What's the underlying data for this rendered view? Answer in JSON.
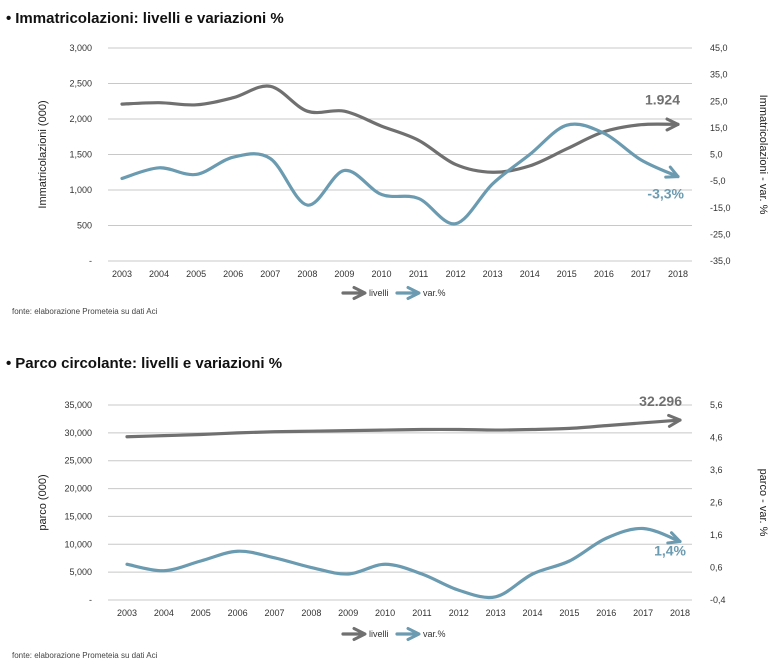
{
  "charts_meta": {
    "bullet": "•",
    "source_text": "fonte: elaborazione Prometeia su dati Aci",
    "legend_levels": "livelli",
    "legend_var": "var.%",
    "colors": {
      "levels": "#707070",
      "var": "#6b9bb0",
      "grid": "#c8c8c8"
    }
  },
  "chart_data": [
    {
      "type": "line",
      "title": "Immatricolazioni: livelli e variazioni %",
      "categories": [
        "2003",
        "2004",
        "2005",
        "2006",
        "2007",
        "2008",
        "2009",
        "2010",
        "2011",
        "2012",
        "2013",
        "2014",
        "2015",
        "2016",
        "2017",
        "2018"
      ],
      "ylabel": "Immatricolazioni (000)",
      "y2label": "Immatricolazioni - var. %",
      "yticks": [
        "3,000",
        "2,500",
        "2,000",
        "1,500",
        "1,000",
        "500",
        "-"
      ],
      "y2ticks": [
        "45,0",
        "35,0",
        "25,0",
        "15,0",
        "5,0",
        "-5,0",
        "-15,0",
        "-25,0",
        "-35,0"
      ],
      "ylim": [
        0,
        3000
      ],
      "y2lim": [
        -35,
        45
      ],
      "series": [
        {
          "name": "livelli",
          "axis": "left",
          "values": [
            2210,
            2230,
            2200,
            2300,
            2460,
            2110,
            2110,
            1900,
            1700,
            1360,
            1250,
            1340,
            1580,
            1820,
            1920,
            1924
          ]
        },
        {
          "name": "var.%",
          "axis": "right",
          "values": [
            -4.0,
            0.0,
            -2.5,
            4.0,
            3.5,
            -14.0,
            -1.0,
            -10.0,
            -11.5,
            -21.0,
            -6.0,
            5.0,
            16.0,
            13.0,
            3.0,
            -3.3
          ]
        }
      ],
      "end_label_levels": "1.924",
      "end_label_var": "-3,3%"
    },
    {
      "type": "line",
      "title": "Parco circolante: livelli e variazioni %",
      "categories": [
        "2003",
        "2004",
        "2005",
        "2006",
        "2007",
        "2008",
        "2009",
        "2010",
        "2011",
        "2012",
        "2013",
        "2014",
        "2015",
        "2016",
        "2017",
        "2018"
      ],
      "ylabel": "parco (000)",
      "y2label": "parco - var. %",
      "yticks": [
        "35,000",
        "30,000",
        "25,000",
        "20,000",
        "15,000",
        "10,000",
        "5,000",
        "-"
      ],
      "y2ticks": [
        "5,6",
        "4,6",
        "3,6",
        "2,6",
        "1,6",
        "0,6",
        "-0,4"
      ],
      "ylim": [
        0,
        35000
      ],
      "y2lim": [
        -0.4,
        5.6
      ],
      "series": [
        {
          "name": "livelli",
          "axis": "left",
          "values": [
            29300,
            29500,
            29700,
            30000,
            30200,
            30300,
            30400,
            30500,
            30600,
            30600,
            30500,
            30600,
            30800,
            31300,
            31800,
            32296
          ]
        },
        {
          "name": "var.%",
          "axis": "right",
          "values": [
            0.7,
            0.5,
            0.8,
            1.1,
            0.9,
            0.6,
            0.4,
            0.7,
            0.4,
            -0.1,
            -0.3,
            0.4,
            0.8,
            1.5,
            1.8,
            1.4
          ]
        }
      ],
      "end_label_levels": "32.296",
      "end_label_var": "1,4%"
    }
  ]
}
